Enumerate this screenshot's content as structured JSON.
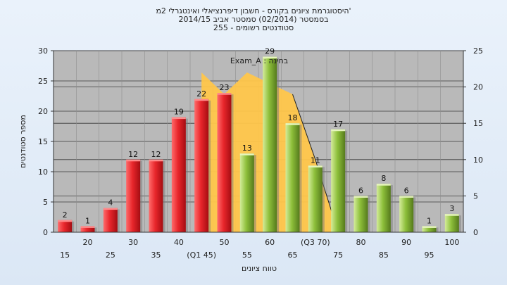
{
  "chart_data": {
    "type": "bar",
    "title": "'היסטוגרמת ציונים בקורס - חשבון דיפרנציאלי ואינטגרלי 2מ",
    "subtitle": "בסמסטר  (02/2014)  סמסטר אביב 2014/15",
    "subtitle2": "סטודנטים רשומים - 255",
    "annotation": "בחינה : Exam_A",
    "xlabel": "טווח ציונים",
    "ylabel": "מספר סטודנטים",
    "ylim": [
      0,
      30
    ],
    "y2lim": [
      0,
      25
    ],
    "yticks": [
      0,
      5,
      10,
      15,
      20,
      25,
      30
    ],
    "y2ticks": [
      0,
      5,
      10,
      15,
      20,
      25
    ],
    "grid": true,
    "legend": "none",
    "categories": [
      "15",
      "20",
      "25",
      "30",
      "35",
      "40",
      "(Q1 45)",
      "50",
      "55",
      "60",
      "65",
      "(Q3 70)",
      "75",
      "80",
      "85",
      "90",
      "95",
      "100"
    ],
    "values": [
      2,
      1,
      4,
      12,
      12,
      19,
      22,
      23,
      13,
      29,
      18,
      11,
      17,
      6,
      8,
      6,
      1,
      3
    ],
    "bar_colors": [
      "red",
      "red",
      "red",
      "red",
      "red",
      "red",
      "red",
      "red",
      "green",
      "green",
      "green",
      "green",
      "green",
      "green",
      "green",
      "green",
      "green",
      "green"
    ],
    "area_series": {
      "name": "",
      "axis": "right",
      "x_start": "(Q1 45)",
      "x_end": "75",
      "values": [
        22,
        19,
        22,
        20.5,
        19,
        10,
        0
      ]
    },
    "colors": {
      "red_bar": "#e8262b",
      "green_bar": "#8dbf3a",
      "area": "#ffc64a",
      "plot_bg": "#b9b9b9"
    }
  }
}
